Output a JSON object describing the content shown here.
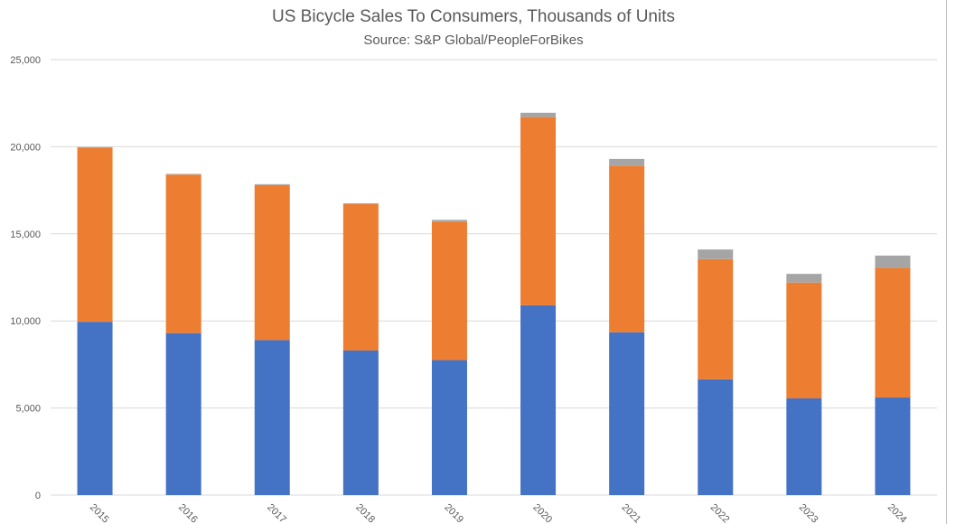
{
  "chart_data": {
    "type": "bar",
    "stacked": true,
    "title": "US Bicycle Sales To Consumers, Thousands of Units",
    "subtitle": "Source: S&P Global/PeopleForBikes",
    "categories": [
      "2015",
      "2016",
      "2017",
      "2018",
      "2019",
      "2020",
      "2021",
      "2022",
      "2023",
      "2024"
    ],
    "series": [
      {
        "color": "#4472c4",
        "values": [
          9950,
          9300,
          8900,
          8300,
          7750,
          10900,
          9350,
          6650,
          5550,
          5600
        ]
      },
      {
        "color": "#ed7d31",
        "values": [
          10000,
          9100,
          8900,
          8400,
          7950,
          10800,
          9550,
          6900,
          6650,
          7450
        ]
      },
      {
        "color": "#a5a5a5",
        "values": [
          30,
          40,
          50,
          50,
          100,
          250,
          400,
          550,
          500,
          700
        ]
      }
    ],
    "ylim": [
      0,
      25000
    ],
    "yticks": [
      "0",
      "5,000",
      "10,000",
      "15,000",
      "20,000",
      "25,000"
    ],
    "grid": true,
    "legend": "none"
  }
}
